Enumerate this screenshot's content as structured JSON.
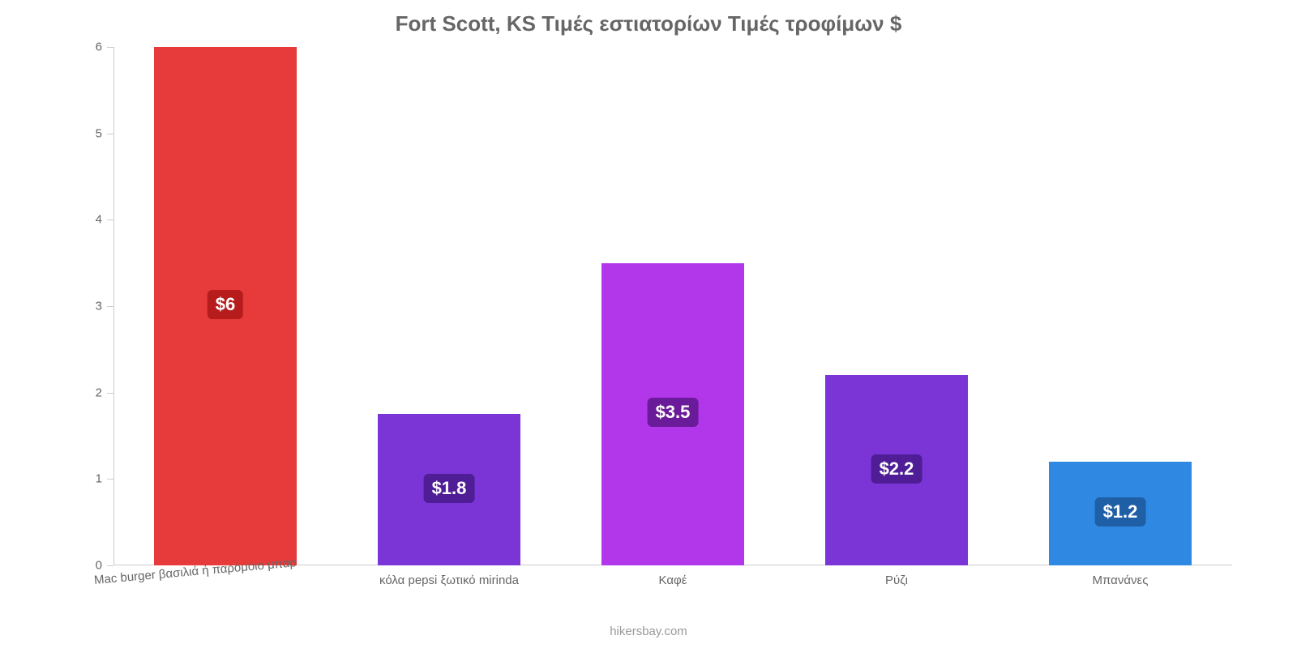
{
  "chart": {
    "type": "bar",
    "title": "Fort Scott, KS Τιμές εστιατορίων Τιμές τροφίμων $",
    "title_color": "#666666",
    "title_fontsize": 26,
    "background_color": "#ffffff",
    "attribution": "hikersbay.com",
    "attribution_color": "#999999",
    "attribution_fontsize": 15,
    "y": {
      "min": 0,
      "max": 6,
      "ticks": [
        0,
        1,
        2,
        3,
        4,
        5,
        6
      ],
      "tick_color": "#666666",
      "tick_fontsize": 15,
      "axis_line_color": "#cccccc"
    },
    "x": {
      "tick_color": "#666666",
      "tick_fontsize": 15,
      "rotate_first_deg": -5,
      "axis_line_color": "#cccccc"
    },
    "bar_width_ratio": 0.64,
    "value_label_fontsize": 22,
    "value_label_radius": 6,
    "series": [
      {
        "label": "Mac burger βασιλιά ή παρόμοιο μπαρ",
        "value": 6.0,
        "display_value": "$6",
        "bar_color": "#e73b3b",
        "badge_bg": "#b71c1c",
        "badge_text": "#ffffff"
      },
      {
        "label": "κόλα pepsi ξωτικό mirinda",
        "value": 1.75,
        "display_value": "$1.8",
        "bar_color": "#7b35d6",
        "badge_bg": "#4f1d96",
        "badge_text": "#ffffff"
      },
      {
        "label": "Καφέ",
        "value": 3.5,
        "display_value": "$3.5",
        "bar_color": "#b236ea",
        "badge_bg": "#6a1b9a",
        "badge_text": "#ffffff"
      },
      {
        "label": "Ρύζι",
        "value": 2.2,
        "display_value": "$2.2",
        "bar_color": "#7b35d6",
        "badge_bg": "#4f1d96",
        "badge_text": "#ffffff"
      },
      {
        "label": "Μπανάνες",
        "value": 1.2,
        "display_value": "$1.2",
        "bar_color": "#2f89e3",
        "badge_bg": "#1f5fa6",
        "badge_text": "#ffffff"
      }
    ]
  }
}
